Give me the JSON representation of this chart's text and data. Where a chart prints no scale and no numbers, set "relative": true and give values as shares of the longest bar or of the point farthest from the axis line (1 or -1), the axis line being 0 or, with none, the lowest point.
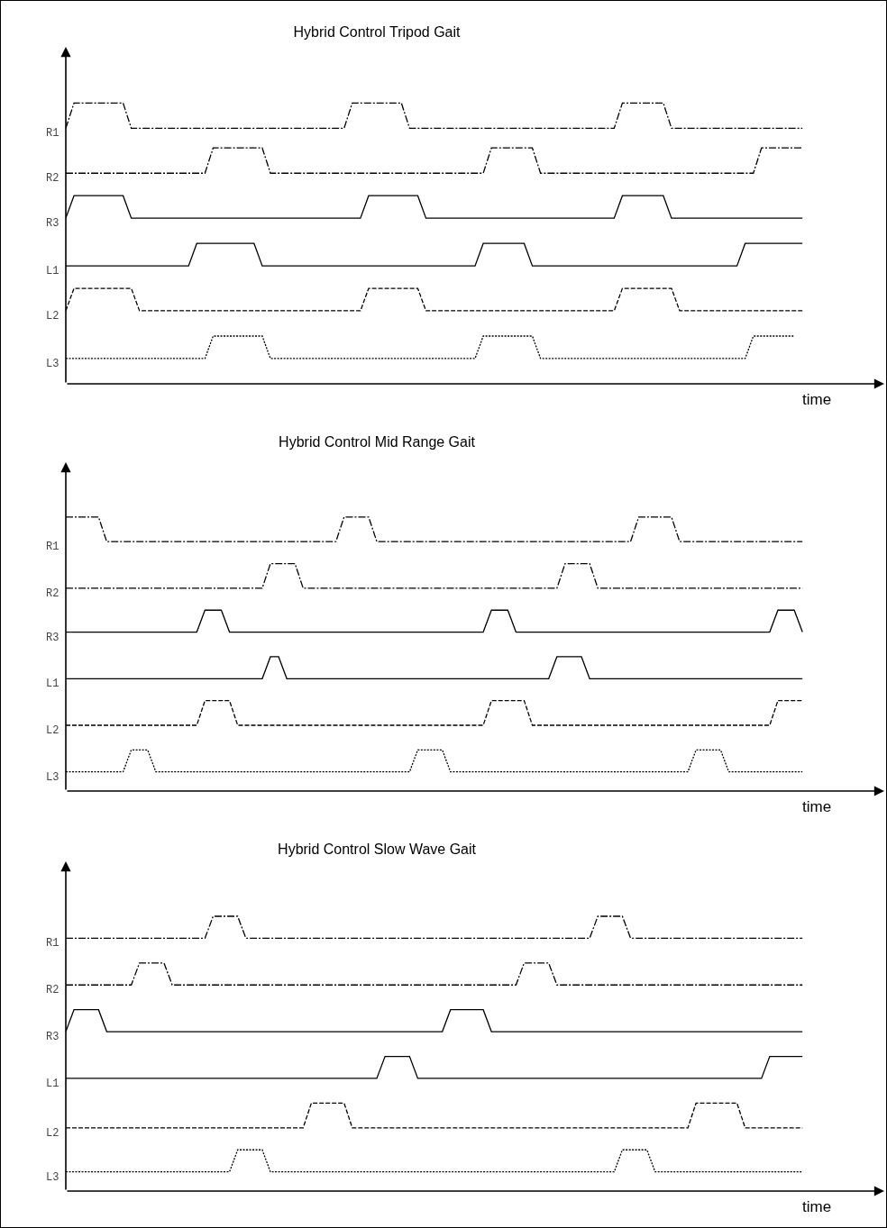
{
  "chart_data": [
    {
      "type": "line",
      "title": "Hybrid Control Tripod Gait",
      "xlabel": "time",
      "relative": true,
      "categories": [
        null,
        null,
        null,
        null,
        null,
        null,
        null,
        null,
        null,
        null,
        null,
        null,
        null,
        null,
        null,
        null,
        null,
        null,
        null,
        null,
        null,
        null,
        null,
        null,
        null,
        null,
        null,
        null,
        null,
        null,
        null,
        null,
        null,
        null,
        null,
        null,
        null,
        null,
        null,
        null,
        null,
        null,
        null,
        null,
        null,
        null,
        null,
        null,
        null,
        null,
        null,
        null,
        null,
        null,
        null,
        null,
        null,
        null,
        null,
        null,
        null,
        null,
        null,
        null,
        null,
        null,
        null,
        null,
        null,
        null,
        null,
        null,
        null,
        null,
        null,
        null,
        null,
        null,
        null,
        null,
        null,
        null,
        null,
        null,
        null,
        null,
        null,
        null,
        null,
        null,
        null
      ],
      "series": [
        {
          "name": "R1",
          "color": "#000000",
          "line_style": "dashdot",
          "values": [
            0.91,
            1,
            1,
            1,
            1,
            1,
            1,
            1,
            0.91,
            0.91,
            0.91,
            0.91,
            0.91,
            0.91,
            0.91,
            0.91,
            0.91,
            0.91,
            0.91,
            0.91,
            0.91,
            0.91,
            0.91,
            0.91,
            0.91,
            0.91,
            0.91,
            0.91,
            0.91,
            0.91,
            0.91,
            0.91,
            0.91,
            0.91,
            0.91,
            1,
            1,
            1,
            1,
            1,
            1,
            1,
            0.91,
            0.91,
            0.91,
            0.91,
            0.91,
            0.91,
            0.91,
            0.91,
            0.91,
            0.91,
            0.91,
            0.91,
            0.91,
            0.91,
            0.91,
            0.91,
            0.91,
            0.91,
            0.91,
            0.91,
            0.91,
            0.91,
            0.91,
            0.91,
            0.91,
            0.91,
            1,
            1,
            1,
            1,
            1,
            1,
            0.91,
            0.91,
            0.91,
            0.91,
            0.91,
            0.91,
            0.91,
            0.91,
            0.91,
            0.91,
            0.91,
            0.91,
            0.91,
            0.91,
            0.91,
            0.91,
            0.91
          ]
        },
        {
          "name": "R2",
          "color": "#000000",
          "line_style": "dashdot",
          "values": [
            0.75,
            0.75,
            0.75,
            0.75,
            0.75,
            0.75,
            0.75,
            0.75,
            0.75,
            0.75,
            0.75,
            0.75,
            0.75,
            0.75,
            0.75,
            0.75,
            0.75,
            0.75,
            0.84,
            0.84,
            0.84,
            0.84,
            0.84,
            0.84,
            0.84,
            0.75,
            0.75,
            0.75,
            0.75,
            0.75,
            0.75,
            0.75,
            0.75,
            0.75,
            0.75,
            0.75,
            0.75,
            0.75,
            0.75,
            0.75,
            0.75,
            0.75,
            0.75,
            0.75,
            0.75,
            0.75,
            0.75,
            0.75,
            0.75,
            0.75,
            0.75,
            0.75,
            0.84,
            0.84,
            0.84,
            0.84,
            0.84,
            0.84,
            0.75,
            0.75,
            0.75,
            0.75,
            0.75,
            0.75,
            0.75,
            0.75,
            0.75,
            0.75,
            0.75,
            0.75,
            0.75,
            0.75,
            0.75,
            0.75,
            0.75,
            0.75,
            0.75,
            0.75,
            0.75,
            0.75,
            0.75,
            0.75,
            0.75,
            0.75,
            0.75,
            0.84,
            0.84,
            0.84,
            0.84,
            0.84,
            0.84
          ]
        },
        {
          "name": "R3",
          "color": "#000000",
          "line_style": "solid",
          "values": [
            0.59,
            0.67,
            0.67,
            0.67,
            0.67,
            0.67,
            0.67,
            0.67,
            0.59,
            0.59,
            0.59,
            0.59,
            0.59,
            0.59,
            0.59,
            0.59,
            0.59,
            0.59,
            0.59,
            0.59,
            0.59,
            0.59,
            0.59,
            0.59,
            0.59,
            0.59,
            0.59,
            0.59,
            0.59,
            0.59,
            0.59,
            0.59,
            0.59,
            0.59,
            0.59,
            0.59,
            0.59,
            0.67,
            0.67,
            0.67,
            0.67,
            0.67,
            0.67,
            0.67,
            0.59,
            0.59,
            0.59,
            0.59,
            0.59,
            0.59,
            0.59,
            0.59,
            0.59,
            0.59,
            0.59,
            0.59,
            0.59,
            0.59,
            0.59,
            0.59,
            0.59,
            0.59,
            0.59,
            0.59,
            0.59,
            0.59,
            0.59,
            0.59,
            0.67,
            0.67,
            0.67,
            0.67,
            0.67,
            0.67,
            0.59,
            0.59,
            0.59,
            0.59,
            0.59,
            0.59,
            0.59,
            0.59,
            0.59,
            0.59,
            0.59,
            0.59,
            0.59,
            0.59,
            0.59,
            0.59,
            0.59
          ]
        },
        {
          "name": "L1",
          "color": "#000000",
          "line_style": "solid",
          "values": [
            0.42,
            0.42,
            0.42,
            0.42,
            0.42,
            0.42,
            0.42,
            0.42,
            0.42,
            0.42,
            0.42,
            0.42,
            0.42,
            0.42,
            0.42,
            0.42,
            0.5,
            0.5,
            0.5,
            0.5,
            0.5,
            0.5,
            0.5,
            0.5,
            0.42,
            0.42,
            0.42,
            0.42,
            0.42,
            0.42,
            0.42,
            0.42,
            0.42,
            0.42,
            0.42,
            0.42,
            0.42,
            0.42,
            0.42,
            0.42,
            0.42,
            0.42,
            0.42,
            0.42,
            0.42,
            0.42,
            0.42,
            0.42,
            0.42,
            0.42,
            0.42,
            0.5,
            0.5,
            0.5,
            0.5,
            0.5,
            0.5,
            0.42,
            0.42,
            0.42,
            0.42,
            0.42,
            0.42,
            0.42,
            0.42,
            0.42,
            0.42,
            0.42,
            0.42,
            0.42,
            0.42,
            0.42,
            0.42,
            0.42,
            0.42,
            0.42,
            0.42,
            0.42,
            0.42,
            0.42,
            0.42,
            0.42,
            0.42,
            0.5,
            0.5,
            0.5,
            0.5,
            0.5,
            0.5,
            0.5,
            0.5
          ]
        },
        {
          "name": "L2",
          "color": "#000000",
          "line_style": "dashed",
          "values": [
            0.26,
            0.34,
            0.34,
            0.34,
            0.34,
            0.34,
            0.34,
            0.34,
            0.34,
            0.26,
            0.26,
            0.26,
            0.26,
            0.26,
            0.26,
            0.26,
            0.26,
            0.26,
            0.26,
            0.26,
            0.26,
            0.26,
            0.26,
            0.26,
            0.26,
            0.26,
            0.26,
            0.26,
            0.26,
            0.26,
            0.26,
            0.26,
            0.26,
            0.26,
            0.26,
            0.26,
            0.26,
            0.34,
            0.34,
            0.34,
            0.34,
            0.34,
            0.34,
            0.34,
            0.26,
            0.26,
            0.26,
            0.26,
            0.26,
            0.26,
            0.26,
            0.26,
            0.26,
            0.26,
            0.26,
            0.26,
            0.26,
            0.26,
            0.26,
            0.26,
            0.26,
            0.26,
            0.26,
            0.26,
            0.26,
            0.26,
            0.26,
            0.26,
            0.34,
            0.34,
            0.34,
            0.34,
            0.34,
            0.34,
            0.34,
            0.26,
            0.26,
            0.26,
            0.26,
            0.26,
            0.26,
            0.26,
            0.26,
            0.26,
            0.26,
            0.26,
            0.26,
            0.26,
            0.26,
            0.26,
            0.26
          ]
        },
        {
          "name": "L3",
          "color": "#000000",
          "line_style": "dotted",
          "values": [
            0.09,
            0.09,
            0.09,
            0.09,
            0.09,
            0.09,
            0.09,
            0.09,
            0.09,
            0.09,
            0.09,
            0.09,
            0.09,
            0.09,
            0.09,
            0.09,
            0.09,
            0.09,
            0.17,
            0.17,
            0.17,
            0.17,
            0.17,
            0.17,
            0.17,
            0.09,
            0.09,
            0.09,
            0.09,
            0.09,
            0.09,
            0.09,
            0.09,
            0.09,
            0.09,
            0.09,
            0.09,
            0.09,
            0.09,
            0.09,
            0.09,
            0.09,
            0.09,
            0.09,
            0.09,
            0.09,
            0.09,
            0.09,
            0.09,
            0.09,
            0.09,
            0.17,
            0.17,
            0.17,
            0.17,
            0.17,
            0.17,
            0.17,
            0.09,
            0.09,
            0.09,
            0.09,
            0.09,
            0.09,
            0.09,
            0.09,
            0.09,
            0.09,
            0.09,
            0.09,
            0.09,
            0.09,
            0.09,
            0.09,
            0.09,
            0.09,
            0.09,
            0.09,
            0.09,
            0.09,
            0.09,
            0.09,
            0.09,
            0.09,
            0.17,
            0.17,
            0.17,
            0.17,
            0.17,
            0.17,
            null
          ]
        }
      ]
    },
    {
      "type": "line",
      "title": "Hybrid Control Mid Range Gait",
      "xlabel": "time",
      "relative": true,
      "categories": [
        null,
        null,
        null,
        null,
        null,
        null,
        null,
        null,
        null,
        null,
        null,
        null,
        null,
        null,
        null,
        null,
        null,
        null,
        null,
        null,
        null,
        null,
        null,
        null,
        null,
        null,
        null,
        null,
        null,
        null,
        null,
        null,
        null,
        null,
        null,
        null,
        null,
        null,
        null,
        null,
        null,
        null,
        null,
        null,
        null,
        null,
        null,
        null,
        null,
        null,
        null,
        null,
        null,
        null,
        null,
        null,
        null,
        null,
        null,
        null,
        null,
        null,
        null,
        null,
        null,
        null,
        null,
        null,
        null,
        null,
        null,
        null,
        null,
        null,
        null,
        null,
        null,
        null,
        null,
        null,
        null,
        null,
        null,
        null,
        null,
        null,
        null,
        null,
        null,
        null,
        null
      ],
      "series": [
        {
          "name": "R1",
          "color": "#000000",
          "line_style": "dashdot",
          "values": [
            1,
            1,
            1,
            1,
            1,
            0.91,
            0.91,
            0.91,
            0.91,
            0.91,
            0.91,
            0.91,
            0.91,
            0.91,
            0.91,
            0.91,
            0.91,
            0.91,
            0.91,
            0.91,
            0.91,
            0.91,
            0.91,
            0.91,
            0.91,
            0.91,
            0.91,
            0.91,
            0.91,
            0.91,
            0.91,
            0.91,
            0.91,
            0.91,
            1,
            1,
            1,
            1,
            0.91,
            0.91,
            0.91,
            0.91,
            0.91,
            0.91,
            0.91,
            0.91,
            0.91,
            0.91,
            0.91,
            0.91,
            0.91,
            0.91,
            0.91,
            0.91,
            0.91,
            0.91,
            0.91,
            0.91,
            0.91,
            0.91,
            0.91,
            0.91,
            0.91,
            0.91,
            0.91,
            0.91,
            0.91,
            0.91,
            0.91,
            0.91,
            1,
            1,
            1,
            1,
            1,
            0.91,
            0.91,
            0.91,
            0.91,
            0.91,
            0.91,
            0.91,
            0.91,
            0.91,
            0.91,
            0.91,
            0.91,
            0.91,
            0.91,
            0.91,
            0.91
          ]
        },
        {
          "name": "R2",
          "color": "#000000",
          "line_style": "dashdot",
          "values": [
            0.74,
            0.74,
            0.74,
            0.74,
            0.74,
            0.74,
            0.74,
            0.74,
            0.74,
            0.74,
            0.74,
            0.74,
            0.74,
            0.74,
            0.74,
            0.74,
            0.74,
            0.74,
            0.74,
            0.74,
            0.74,
            0.74,
            0.74,
            0.74,
            0.74,
            0.83,
            0.83,
            0.83,
            0.83,
            0.74,
            0.74,
            0.74,
            0.74,
            0.74,
            0.74,
            0.74,
            0.74,
            0.74,
            0.74,
            0.74,
            0.74,
            0.74,
            0.74,
            0.74,
            0.74,
            0.74,
            0.74,
            0.74,
            0.74,
            0.74,
            0.74,
            0.74,
            0.74,
            0.74,
            0.74,
            0.74,
            0.74,
            0.74,
            0.74,
            0.74,
            0.74,
            0.83,
            0.83,
            0.83,
            0.83,
            0.74,
            0.74,
            0.74,
            0.74,
            0.74,
            0.74,
            0.74,
            0.74,
            0.74,
            0.74,
            0.74,
            0.74,
            0.74,
            0.74,
            0.74,
            0.74,
            0.74,
            0.74,
            0.74,
            0.74,
            0.74,
            0.74,
            0.74,
            0.74,
            0.74,
            0.74
          ]
        },
        {
          "name": "R3",
          "color": "#000000",
          "line_style": "solid",
          "values": [
            0.58,
            0.58,
            0.58,
            0.58,
            0.58,
            0.58,
            0.58,
            0.58,
            0.58,
            0.58,
            0.58,
            0.58,
            0.58,
            0.58,
            0.58,
            0.58,
            0.58,
            0.66,
            0.66,
            0.66,
            0.58,
            0.58,
            0.58,
            0.58,
            0.58,
            0.58,
            0.58,
            0.58,
            0.58,
            0.58,
            0.58,
            0.58,
            0.58,
            0.58,
            0.58,
            0.58,
            0.58,
            0.58,
            0.58,
            0.58,
            0.58,
            0.58,
            0.58,
            0.58,
            0.58,
            0.58,
            0.58,
            0.58,
            0.58,
            0.58,
            0.58,
            0.58,
            0.66,
            0.66,
            0.66,
            0.58,
            0.58,
            0.58,
            0.58,
            0.58,
            0.58,
            0.58,
            0.58,
            0.58,
            0.58,
            0.58,
            0.58,
            0.58,
            0.58,
            0.58,
            0.58,
            0.58,
            0.58,
            0.58,
            0.58,
            0.58,
            0.58,
            0.58,
            0.58,
            0.58,
            0.58,
            0.58,
            0.58,
            0.58,
            0.58,
            0.58,
            0.58,
            0.66,
            0.66,
            0.66,
            0.58
          ]
        },
        {
          "name": "L1",
          "color": "#000000",
          "line_style": "solid",
          "values": [
            0.41,
            0.41,
            0.41,
            0.41,
            0.41,
            0.41,
            0.41,
            0.41,
            0.41,
            0.41,
            0.41,
            0.41,
            0.41,
            0.41,
            0.41,
            0.41,
            0.41,
            0.41,
            0.41,
            0.41,
            0.41,
            0.41,
            0.41,
            0.41,
            0.41,
            0.49,
            0.49,
            0.41,
            0.41,
            0.41,
            0.41,
            0.41,
            0.41,
            0.41,
            0.41,
            0.41,
            0.41,
            0.41,
            0.41,
            0.41,
            0.41,
            0.41,
            0.41,
            0.41,
            0.41,
            0.41,
            0.41,
            0.41,
            0.41,
            0.41,
            0.41,
            0.41,
            0.41,
            0.41,
            0.41,
            0.41,
            0.41,
            0.41,
            0.41,
            0.41,
            0.49,
            0.49,
            0.49,
            0.49,
            0.41,
            0.41,
            0.41,
            0.41,
            0.41,
            0.41,
            0.41,
            0.41,
            0.41,
            0.41,
            0.41,
            0.41,
            0.41,
            0.41,
            0.41,
            0.41,
            0.41,
            0.41,
            0.41,
            0.41,
            0.41,
            0.41,
            0.41,
            0.41,
            0.41,
            0.41,
            0.41
          ]
        },
        {
          "name": "L2",
          "color": "#000000",
          "line_style": "dashed",
          "values": [
            0.24,
            0.24,
            0.24,
            0.24,
            0.24,
            0.24,
            0.24,
            0.24,
            0.24,
            0.24,
            0.24,
            0.24,
            0.24,
            0.24,
            0.24,
            0.24,
            0.24,
            0.33,
            0.33,
            0.33,
            0.33,
            0.24,
            0.24,
            0.24,
            0.24,
            0.24,
            0.24,
            0.24,
            0.24,
            0.24,
            0.24,
            0.24,
            0.24,
            0.24,
            0.24,
            0.24,
            0.24,
            0.24,
            0.24,
            0.24,
            0.24,
            0.24,
            0.24,
            0.24,
            0.24,
            0.24,
            0.24,
            0.24,
            0.24,
            0.24,
            0.24,
            0.24,
            0.33,
            0.33,
            0.33,
            0.33,
            0.33,
            0.24,
            0.24,
            0.24,
            0.24,
            0.24,
            0.24,
            0.24,
            0.24,
            0.24,
            0.24,
            0.24,
            0.24,
            0.24,
            0.24,
            0.24,
            0.24,
            0.24,
            0.24,
            0.24,
            0.24,
            0.24,
            0.24,
            0.24,
            0.24,
            0.24,
            0.24,
            0.24,
            0.24,
            0.24,
            0.24,
            0.33,
            0.33,
            0.33,
            0.33
          ]
        },
        {
          "name": "L3",
          "color": "#000000",
          "line_style": "dotted",
          "values": [
            0.07,
            0.07,
            0.07,
            0.07,
            0.07,
            0.07,
            0.07,
            0.07,
            0.15,
            0.15,
            0.15,
            0.07,
            0.07,
            0.07,
            0.07,
            0.07,
            0.07,
            0.07,
            0.07,
            0.07,
            0.07,
            0.07,
            0.07,
            0.07,
            0.07,
            0.07,
            0.07,
            0.07,
            0.07,
            0.07,
            0.07,
            0.07,
            0.07,
            0.07,
            0.07,
            0.07,
            0.07,
            0.07,
            0.07,
            0.07,
            0.07,
            0.07,
            0.07,
            0.15,
            0.15,
            0.15,
            0.15,
            0.07,
            0.07,
            0.07,
            0.07,
            0.07,
            0.07,
            0.07,
            0.07,
            0.07,
            0.07,
            0.07,
            0.07,
            0.07,
            0.07,
            0.07,
            0.07,
            0.07,
            0.07,
            0.07,
            0.07,
            0.07,
            0.07,
            0.07,
            0.07,
            0.07,
            0.07,
            0.07,
            0.07,
            0.07,
            0.07,
            0.15,
            0.15,
            0.15,
            0.15,
            0.07,
            0.07,
            0.07,
            0.07,
            0.07,
            0.07,
            0.07,
            0.07,
            0.07,
            0.07
          ]
        }
      ]
    },
    {
      "type": "line",
      "title": "Hybrid Control Slow Wave Gait",
      "xlabel": "time",
      "relative": true,
      "categories": [
        null,
        null,
        null,
        null,
        null,
        null,
        null,
        null,
        null,
        null,
        null,
        null,
        null,
        null,
        null,
        null,
        null,
        null,
        null,
        null,
        null,
        null,
        null,
        null,
        null,
        null,
        null,
        null,
        null,
        null,
        null,
        null,
        null,
        null,
        null,
        null,
        null,
        null,
        null,
        null,
        null,
        null,
        null,
        null,
        null,
        null,
        null,
        null,
        null,
        null,
        null,
        null,
        null,
        null,
        null,
        null,
        null,
        null,
        null,
        null,
        null,
        null,
        null,
        null,
        null,
        null,
        null,
        null,
        null,
        null,
        null,
        null,
        null,
        null,
        null,
        null,
        null,
        null,
        null,
        null,
        null,
        null,
        null,
        null,
        null,
        null,
        null,
        null,
        null,
        null,
        null
      ],
      "series": [
        {
          "name": "R1",
          "color": "#000000",
          "line_style": "dashdot",
          "values": [
            0.92,
            0.92,
            0.92,
            0.92,
            0.92,
            0.92,
            0.92,
            0.92,
            0.92,
            0.92,
            0.92,
            0.92,
            0.92,
            0.92,
            0.92,
            0.92,
            0.92,
            0.92,
            1,
            1,
            1,
            1,
            0.92,
            0.92,
            0.92,
            0.92,
            0.92,
            0.92,
            0.92,
            0.92,
            0.92,
            0.92,
            0.92,
            0.92,
            0.92,
            0.92,
            0.92,
            0.92,
            0.92,
            0.92,
            0.92,
            0.92,
            0.92,
            0.92,
            0.92,
            0.92,
            0.92,
            0.92,
            0.92,
            0.92,
            0.92,
            0.92,
            0.92,
            0.92,
            0.92,
            0.92,
            0.92,
            0.92,
            0.92,
            0.92,
            0.92,
            0.92,
            0.92,
            0.92,
            0.92,
            1,
            1,
            1,
            1,
            0.92,
            0.92,
            0.92,
            0.92,
            0.92,
            0.92,
            0.92,
            0.92,
            0.92,
            0.92,
            0.92,
            0.92,
            0.92,
            0.92,
            0.92,
            0.92,
            0.92,
            0.92,
            0.92,
            0.92,
            0.92,
            0.92
          ]
        },
        {
          "name": "R2",
          "color": "#000000",
          "line_style": "dashdot",
          "values": [
            0.75,
            0.75,
            0.75,
            0.75,
            0.75,
            0.75,
            0.75,
            0.75,
            0.75,
            0.83,
            0.83,
            0.83,
            0.83,
            0.75,
            0.75,
            0.75,
            0.75,
            0.75,
            0.75,
            0.75,
            0.75,
            0.75,
            0.75,
            0.75,
            0.75,
            0.75,
            0.75,
            0.75,
            0.75,
            0.75,
            0.75,
            0.75,
            0.75,
            0.75,
            0.75,
            0.75,
            0.75,
            0.75,
            0.75,
            0.75,
            0.75,
            0.75,
            0.75,
            0.75,
            0.75,
            0.75,
            0.75,
            0.75,
            0.75,
            0.75,
            0.75,
            0.75,
            0.75,
            0.75,
            0.75,
            0.75,
            0.83,
            0.83,
            0.83,
            0.83,
            0.75,
            0.75,
            0.75,
            0.75,
            0.75,
            0.75,
            0.75,
            0.75,
            0.75,
            0.75,
            0.75,
            0.75,
            0.75,
            0.75,
            0.75,
            0.75,
            0.75,
            0.75,
            0.75,
            0.75,
            0.75,
            0.75,
            0.75,
            0.75,
            0.75,
            0.75,
            0.75,
            0.75,
            0.75,
            0.75,
            0.75
          ]
        },
        {
          "name": "R3",
          "color": "#000000",
          "line_style": "solid",
          "values": [
            0.58,
            0.66,
            0.66,
            0.66,
            0.66,
            0.58,
            0.58,
            0.58,
            0.58,
            0.58,
            0.58,
            0.58,
            0.58,
            0.58,
            0.58,
            0.58,
            0.58,
            0.58,
            0.58,
            0.58,
            0.58,
            0.58,
            0.58,
            0.58,
            0.58,
            0.58,
            0.58,
            0.58,
            0.58,
            0.58,
            0.58,
            0.58,
            0.58,
            0.58,
            0.58,
            0.58,
            0.58,
            0.58,
            0.58,
            0.58,
            0.58,
            0.58,
            0.58,
            0.58,
            0.58,
            0.58,
            0.58,
            0.66,
            0.66,
            0.66,
            0.66,
            0.66,
            0.58,
            0.58,
            0.58,
            0.58,
            0.58,
            0.58,
            0.58,
            0.58,
            0.58,
            0.58,
            0.58,
            0.58,
            0.58,
            0.58,
            0.58,
            0.58,
            0.58,
            0.58,
            0.58,
            0.58,
            0.58,
            0.58,
            0.58,
            0.58,
            0.58,
            0.58,
            0.58,
            0.58,
            0.58,
            0.58,
            0.58,
            0.58,
            0.58,
            0.58,
            0.58,
            0.58,
            0.58,
            0.58,
            0.58
          ]
        },
        {
          "name": "L1",
          "color": "#000000",
          "line_style": "solid",
          "values": [
            0.41,
            0.41,
            0.41,
            0.41,
            0.41,
            0.41,
            0.41,
            0.41,
            0.41,
            0.41,
            0.41,
            0.41,
            0.41,
            0.41,
            0.41,
            0.41,
            0.41,
            0.41,
            0.41,
            0.41,
            0.41,
            0.41,
            0.41,
            0.41,
            0.41,
            0.41,
            0.41,
            0.41,
            0.41,
            0.41,
            0.41,
            0.41,
            0.41,
            0.41,
            0.41,
            0.41,
            0.41,
            0.41,
            0.41,
            0.49,
            0.49,
            0.49,
            0.49,
            0.41,
            0.41,
            0.41,
            0.41,
            0.41,
            0.41,
            0.41,
            0.41,
            0.41,
            0.41,
            0.41,
            0.41,
            0.41,
            0.41,
            0.41,
            0.41,
            0.41,
            0.41,
            0.41,
            0.41,
            0.41,
            0.41,
            0.41,
            0.41,
            0.41,
            0.41,
            0.41,
            0.41,
            0.41,
            0.41,
            0.41,
            0.41,
            0.41,
            0.41,
            0.41,
            0.41,
            0.41,
            0.41,
            0.41,
            0.41,
            0.41,
            0.41,
            0.41,
            0.49,
            0.49,
            0.49,
            0.49,
            0.49
          ]
        },
        {
          "name": "L2",
          "color": "#000000",
          "line_style": "dashed",
          "values": [
            0.23,
            0.23,
            0.23,
            0.23,
            0.23,
            0.23,
            0.23,
            0.23,
            0.23,
            0.23,
            0.23,
            0.23,
            0.23,
            0.23,
            0.23,
            0.23,
            0.23,
            0.23,
            0.23,
            0.23,
            0.23,
            0.23,
            0.23,
            0.23,
            0.23,
            0.23,
            0.23,
            0.23,
            0.23,
            0.23,
            0.32,
            0.32,
            0.32,
            0.32,
            0.32,
            0.23,
            0.23,
            0.23,
            0.23,
            0.23,
            0.23,
            0.23,
            0.23,
            0.23,
            0.23,
            0.23,
            0.23,
            0.23,
            0.23,
            0.23,
            0.23,
            0.23,
            0.23,
            0.23,
            0.23,
            0.23,
            0.23,
            0.23,
            0.23,
            0.23,
            0.23,
            0.23,
            0.23,
            0.23,
            0.23,
            0.23,
            0.23,
            0.23,
            0.23,
            0.23,
            0.23,
            0.23,
            0.23,
            0.23,
            0.23,
            0.23,
            0.23,
            0.32,
            0.32,
            0.32,
            0.32,
            0.32,
            0.32,
            0.23,
            0.23,
            0.23,
            0.23,
            0.23,
            0.23,
            0.23,
            0.23
          ]
        },
        {
          "name": "L3",
          "color": "#000000",
          "line_style": "dotted",
          "values": [
            0.07,
            0.07,
            0.07,
            0.07,
            0.07,
            0.07,
            0.07,
            0.07,
            0.07,
            0.07,
            0.07,
            0.07,
            0.07,
            0.07,
            0.07,
            0.07,
            0.07,
            0.07,
            0.07,
            0.07,
            0.07,
            0.15,
            0.15,
            0.15,
            0.15,
            0.07,
            0.07,
            0.07,
            0.07,
            0.07,
            0.07,
            0.07,
            0.07,
            0.07,
            0.07,
            0.07,
            0.07,
            0.07,
            0.07,
            0.07,
            0.07,
            0.07,
            0.07,
            0.07,
            0.07,
            0.07,
            0.07,
            0.07,
            0.07,
            0.07,
            0.07,
            0.07,
            0.07,
            0.07,
            0.07,
            0.07,
            0.07,
            0.07,
            0.07,
            0.07,
            0.07,
            0.07,
            0.07,
            0.07,
            0.07,
            0.07,
            0.07,
            0.07,
            0.15,
            0.15,
            0.15,
            0.15,
            0.07,
            0.07,
            0.07,
            0.07,
            0.07,
            0.07,
            0.07,
            0.07,
            0.07,
            0.07,
            0.07,
            0.07,
            0.07,
            0.07,
            0.07,
            0.07,
            0.07,
            0.07,
            0.07
          ]
        }
      ]
    }
  ]
}
